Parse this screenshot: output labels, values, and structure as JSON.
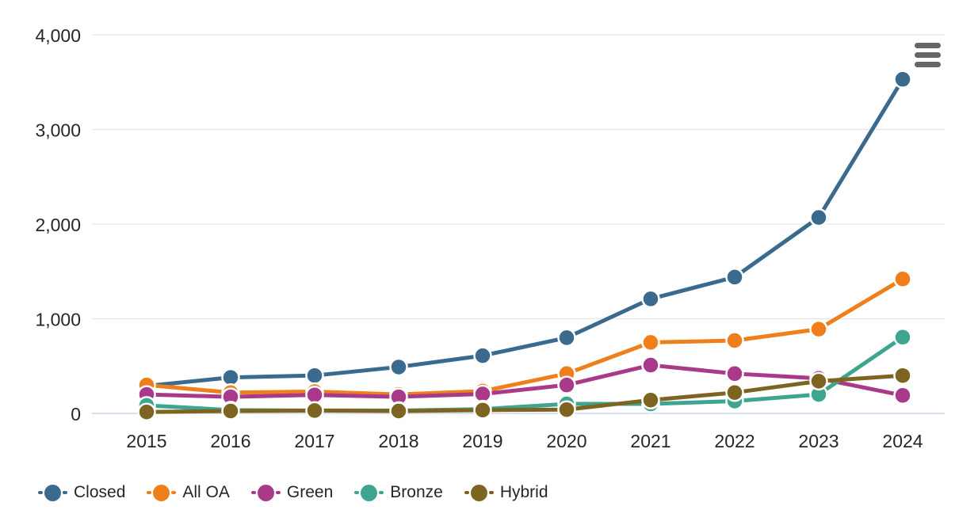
{
  "chart_data": {
    "type": "line",
    "title": "",
    "categories": [
      "2015",
      "2016",
      "2017",
      "2018",
      "2019",
      "2020",
      "2021",
      "2022",
      "2023",
      "2024"
    ],
    "series": [
      {
        "name": "Closed",
        "color": "#3a6b8e",
        "values": [
          290,
          380,
          400,
          490,
          610,
          800,
          1210,
          1440,
          2070,
          3530
        ]
      },
      {
        "name": "All OA",
        "color": "#ef7f1a",
        "values": [
          300,
          220,
          230,
          200,
          235,
          420,
          750,
          770,
          890,
          1420
        ]
      },
      {
        "name": "Green",
        "color": "#a93a8a",
        "values": [
          200,
          175,
          195,
          175,
          205,
          300,
          510,
          420,
          370,
          190
        ]
      },
      {
        "name": "Bronze",
        "color": "#3ea68f",
        "values": [
          85,
          35,
          30,
          30,
          45,
          100,
          100,
          130,
          200,
          805
        ]
      },
      {
        "name": "Hybrid",
        "color": "#7e6421",
        "values": [
          15,
          25,
          30,
          25,
          35,
          40,
          140,
          220,
          340,
          400
        ]
      }
    ],
    "ylim": [
      0,
      4000
    ],
    "yticks": [
      0,
      1000,
      2000,
      3000,
      4000
    ],
    "ytick_labels": [
      "0",
      "1,000",
      "2,000",
      "3,000",
      "4,000"
    ],
    "grid": true,
    "legend_position": "bottom-left",
    "axis": {
      "text_color": "#262626",
      "grid_color": "#e6e6e6",
      "zero_line_color": "#ccd6eb"
    }
  },
  "menu": {
    "icon": "hamburger-menu-icon",
    "icon_color": "#666666"
  }
}
